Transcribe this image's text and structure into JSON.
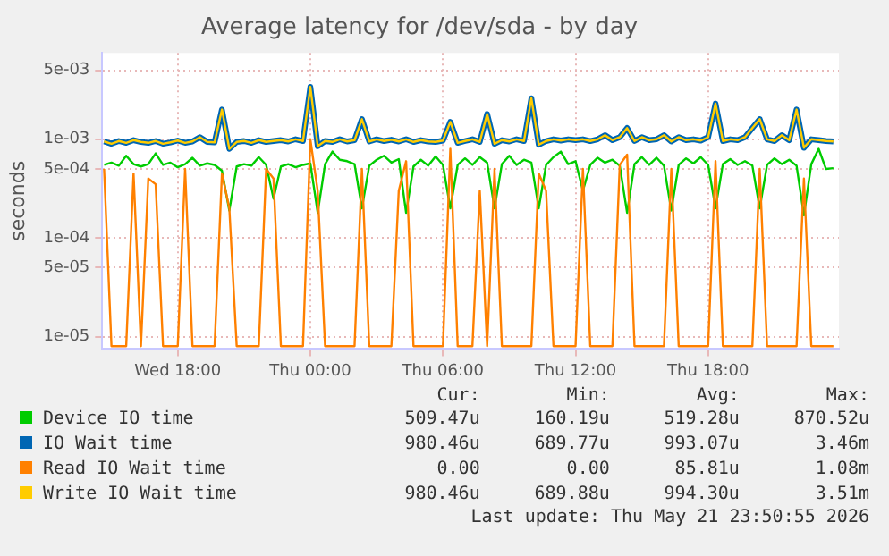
{
  "chart_data": {
    "type": "line",
    "title": "Average latency for /dev/sda - by day",
    "ylabel": "seconds",
    "x": [
      "2026-05-20T14:40",
      "2026-05-20T15:00",
      "2026-05-20T15:20",
      "2026-05-20T15:40",
      "2026-05-20T16:00",
      "2026-05-20T16:20",
      "2026-05-20T16:40",
      "2026-05-20T17:00",
      "2026-05-20T17:20",
      "2026-05-20T17:40",
      "2026-05-20T18:00",
      "2026-05-20T18:20",
      "2026-05-20T18:40",
      "2026-05-20T19:00",
      "2026-05-20T19:20",
      "2026-05-20T19:40",
      "2026-05-20T20:00",
      "2026-05-20T20:20",
      "2026-05-20T20:40",
      "2026-05-20T21:00",
      "2026-05-20T21:20",
      "2026-05-20T21:40",
      "2026-05-20T22:00",
      "2026-05-20T22:20",
      "2026-05-20T22:40",
      "2026-05-20T23:00",
      "2026-05-20T23:20",
      "2026-05-20T23:40",
      "2026-05-21T00:00",
      "2026-05-21T00:20",
      "2026-05-21T00:40",
      "2026-05-21T01:00",
      "2026-05-21T01:20",
      "2026-05-21T01:40",
      "2026-05-21T02:00",
      "2026-05-21T02:20",
      "2026-05-21T02:40",
      "2026-05-21T03:00",
      "2026-05-21T03:20",
      "2026-05-21T03:40",
      "2026-05-21T04:00",
      "2026-05-21T04:20",
      "2026-05-21T04:40",
      "2026-05-21T05:00",
      "2026-05-21T05:20",
      "2026-05-21T05:40",
      "2026-05-21T06:00",
      "2026-05-21T06:20",
      "2026-05-21T06:40",
      "2026-05-21T07:00",
      "2026-05-21T07:20",
      "2026-05-21T07:40",
      "2026-05-21T08:00",
      "2026-05-21T08:20",
      "2026-05-21T08:40",
      "2026-05-21T09:00",
      "2026-05-21T09:20",
      "2026-05-21T09:40",
      "2026-05-21T10:00",
      "2026-05-21T10:20",
      "2026-05-21T10:40",
      "2026-05-21T11:00",
      "2026-05-21T11:20",
      "2026-05-21T11:40",
      "2026-05-21T12:00",
      "2026-05-21T12:20",
      "2026-05-21T12:40",
      "2026-05-21T13:00",
      "2026-05-21T13:20",
      "2026-05-21T13:40",
      "2026-05-21T14:00",
      "2026-05-21T14:20",
      "2026-05-21T14:40",
      "2026-05-21T15:00",
      "2026-05-21T15:20",
      "2026-05-21T15:40",
      "2026-05-21T16:00",
      "2026-05-21T16:20",
      "2026-05-21T16:40",
      "2026-05-21T17:00",
      "2026-05-21T17:20",
      "2026-05-21T17:40",
      "2026-05-21T18:00",
      "2026-05-21T18:20",
      "2026-05-21T18:40",
      "2026-05-21T19:00",
      "2026-05-21T19:20",
      "2026-05-21T19:40",
      "2026-05-21T20:00",
      "2026-05-21T20:20",
      "2026-05-21T20:40",
      "2026-05-21T21:00",
      "2026-05-21T21:20",
      "2026-05-21T21:40",
      "2026-05-21T22:00",
      "2026-05-21T22:20",
      "2026-05-21T22:40",
      "2026-05-21T23:00",
      "2026-05-21T23:20",
      "2026-05-21T23:40"
    ],
    "series": [
      {
        "name": "Device IO time",
        "color": "#00cc00",
        "values": [
          0.00055,
          0.00058,
          0.00054,
          0.00068,
          0.00056,
          0.00053,
          0.00056,
          0.00072,
          0.00055,
          0.00058,
          0.00052,
          0.00056,
          0.00065,
          0.00054,
          0.00057,
          0.00055,
          0.00048,
          0.00019,
          0.00053,
          0.00056,
          0.00054,
          0.00066,
          0.00055,
          0.00025,
          0.00053,
          0.00056,
          0.00052,
          0.00055,
          0.00057,
          0.00018,
          0.00056,
          0.00075,
          0.00062,
          0.0006,
          0.00056,
          0.0002,
          0.00054,
          0.00062,
          0.00068,
          0.00058,
          0.00063,
          0.00018,
          0.00053,
          0.00062,
          0.00054,
          0.00067,
          0.00055,
          0.0002,
          0.00055,
          0.00064,
          0.00055,
          0.00066,
          0.00058,
          0.0002,
          0.00056,
          0.00068,
          0.00055,
          0.00062,
          0.00058,
          0.0002,
          0.00055,
          0.00066,
          0.00075,
          0.00056,
          0.0006,
          0.0003,
          0.00055,
          0.00065,
          0.00058,
          0.00062,
          0.00054,
          0.00018,
          0.00056,
          0.00066,
          0.00055,
          0.00065,
          0.00054,
          0.00019,
          0.00055,
          0.00064,
          0.00057,
          0.00066,
          0.00055,
          0.0002,
          0.00056,
          0.00063,
          0.00055,
          0.0006,
          0.00054,
          0.0002,
          0.00055,
          0.00064,
          0.00056,
          0.00062,
          0.00054,
          0.00017,
          0.00056,
          0.0008,
          0.0005,
          0.00051
        ]
      },
      {
        "name": "IO Wait time",
        "color": "#0066b3",
        "values": [
          0.00095,
          0.0009,
          0.00096,
          0.00092,
          0.00098,
          0.00094,
          0.00092,
          0.00096,
          0.0009,
          0.00093,
          0.00097,
          0.00092,
          0.00095,
          0.00105,
          0.00094,
          0.00093,
          0.002,
          0.0008,
          0.00094,
          0.00096,
          0.00092,
          0.00098,
          0.00094,
          0.00096,
          0.00098,
          0.00095,
          0.001,
          0.00096,
          0.0034,
          0.00085,
          0.00096,
          0.00094,
          0.001,
          0.00095,
          0.00098,
          0.0016,
          0.00095,
          0.001,
          0.00096,
          0.00099,
          0.00095,
          0.001,
          0.00094,
          0.00098,
          0.00095,
          0.00094,
          0.00097,
          0.0015,
          0.00092,
          0.00096,
          0.001,
          0.00094,
          0.0018,
          0.0009,
          0.00098,
          0.00095,
          0.001,
          0.00096,
          0.0026,
          0.00088,
          0.00096,
          0.001,
          0.00097,
          0.001,
          0.00098,
          0.001,
          0.00096,
          0.001,
          0.0011,
          0.00098,
          0.00105,
          0.0013,
          0.00096,
          0.00105,
          0.00098,
          0.001,
          0.0011,
          0.00095,
          0.00105,
          0.00098,
          0.001,
          0.00097,
          0.00105,
          0.0023,
          0.00096,
          0.001,
          0.00098,
          0.00105,
          0.0013,
          0.0016,
          0.001,
          0.00096,
          0.0011,
          0.00098,
          0.002,
          0.00082,
          0.001,
          0.00098,
          0.00096,
          0.00095
        ]
      },
      {
        "name": "Read IO Wait time",
        "color": "#ff8000",
        "values": [
          0.0005,
          8e-06,
          8e-06,
          8e-06,
          0.00045,
          8e-06,
          0.0004,
          0.00035,
          8e-06,
          8e-06,
          8e-06,
          0.0005,
          8e-06,
          8e-06,
          8e-06,
          8e-06,
          0.00045,
          0.0002,
          8e-06,
          8e-06,
          8e-06,
          8e-06,
          0.0005,
          0.0004,
          8e-06,
          8e-06,
          8e-06,
          8e-06,
          0.001,
          0.0003,
          8e-06,
          8e-06,
          8e-06,
          8e-06,
          8e-06,
          0.0005,
          8e-06,
          8e-06,
          8e-06,
          8e-06,
          0.0003,
          0.0006,
          8e-06,
          8e-06,
          8e-06,
          8e-06,
          8e-06,
          0.0008,
          8e-06,
          8e-06,
          8e-06,
          0.0003,
          8e-06,
          0.0005,
          8e-06,
          8e-06,
          8e-06,
          8e-06,
          8e-06,
          0.00045,
          0.0003,
          8e-06,
          8e-06,
          8e-06,
          8e-06,
          0.0005,
          8e-06,
          8e-06,
          8e-06,
          8e-06,
          0.00055,
          0.0007,
          8e-06,
          8e-06,
          8e-06,
          8e-06,
          8e-06,
          0.0005,
          8e-06,
          8e-06,
          8e-06,
          8e-06,
          8e-06,
          0.0006,
          8e-06,
          8e-06,
          8e-06,
          8e-06,
          8e-06,
          0.0005,
          8e-06,
          8e-06,
          8e-06,
          8e-06,
          8e-06,
          0.0004,
          8e-06,
          8e-06,
          8e-06,
          8e-06
        ]
      },
      {
        "name": "Write IO Wait time",
        "color": "#ffcc00",
        "values": [
          0.00095,
          0.0009,
          0.00096,
          0.00092,
          0.00098,
          0.00094,
          0.00092,
          0.00096,
          0.0009,
          0.00093,
          0.00097,
          0.00092,
          0.00095,
          0.00105,
          0.00094,
          0.00093,
          0.002,
          0.0008,
          0.00094,
          0.00096,
          0.00092,
          0.00098,
          0.00094,
          0.00096,
          0.00098,
          0.00095,
          0.001,
          0.00096,
          0.0034,
          0.00085,
          0.00096,
          0.00094,
          0.001,
          0.00095,
          0.00098,
          0.0016,
          0.00095,
          0.001,
          0.00096,
          0.00099,
          0.00095,
          0.001,
          0.00094,
          0.00098,
          0.00095,
          0.00094,
          0.00097,
          0.0015,
          0.00092,
          0.00096,
          0.001,
          0.00094,
          0.0018,
          0.0009,
          0.00098,
          0.00095,
          0.001,
          0.00096,
          0.0026,
          0.00088,
          0.00096,
          0.001,
          0.00097,
          0.001,
          0.00098,
          0.001,
          0.00096,
          0.001,
          0.0011,
          0.00098,
          0.00105,
          0.0013,
          0.00096,
          0.00105,
          0.00098,
          0.001,
          0.0011,
          0.00095,
          0.00105,
          0.00098,
          0.001,
          0.00097,
          0.00105,
          0.0023,
          0.00096,
          0.001,
          0.00098,
          0.00105,
          0.0013,
          0.0016,
          0.001,
          0.00096,
          0.0011,
          0.00098,
          0.002,
          0.00082,
          0.001,
          0.00098,
          0.00096,
          0.00095
        ]
      }
    ],
    "xlim": [
      "2026-05-20T14:35",
      "2026-05-21T23:55"
    ],
    "xticks": [
      {
        "value": "2026-05-20T18:00",
        "label": "Wed 18:00"
      },
      {
        "value": "2026-05-21T00:00",
        "label": "Thu 00:00"
      },
      {
        "value": "2026-05-21T06:00",
        "label": "Thu 06:00"
      },
      {
        "value": "2026-05-21T12:00",
        "label": "Thu 12:00"
      },
      {
        "value": "2026-05-21T18:00",
        "label": "Thu 18:00"
      }
    ],
    "ylim": [
      7.5e-06,
      0.0075
    ],
    "yticks": [
      {
        "value": 1e-05,
        "label": "1e-05"
      },
      {
        "value": 5e-05,
        "label": "5e-05"
      },
      {
        "value": 0.0001,
        "label": "1e-04"
      },
      {
        "value": 0.0005,
        "label": "5e-04"
      },
      {
        "value": 0.001,
        "label": "1e-03"
      },
      {
        "value": 0.005,
        "label": "5e-03"
      }
    ],
    "log": true,
    "grid": true,
    "legend": "bottom",
    "marker": "none",
    "line_style": "solid",
    "annotations": [
      "Cur:",
      "Min:",
      "Avg:",
      "Max:",
      "509.47u",
      "160.19u",
      "519.28u",
      "870.52u",
      "980.46u",
      "689.77u",
      "993.07u",
      "3.46m",
      "0.00",
      "0.00",
      "85.81u",
      "1.08m",
      "980.46u",
      "689.88u",
      "994.30u",
      "3.51m",
      "Last update: Thu May 21 23:50:55 2026"
    ]
  }
}
